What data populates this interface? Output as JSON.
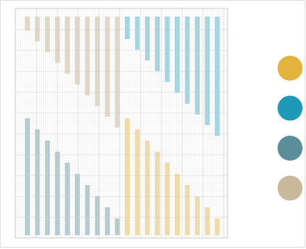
{
  "palette": [
    "#e2b43e",
    "#1e9ab8",
    "#5a8f99",
    "#c9b99a"
  ]
}
